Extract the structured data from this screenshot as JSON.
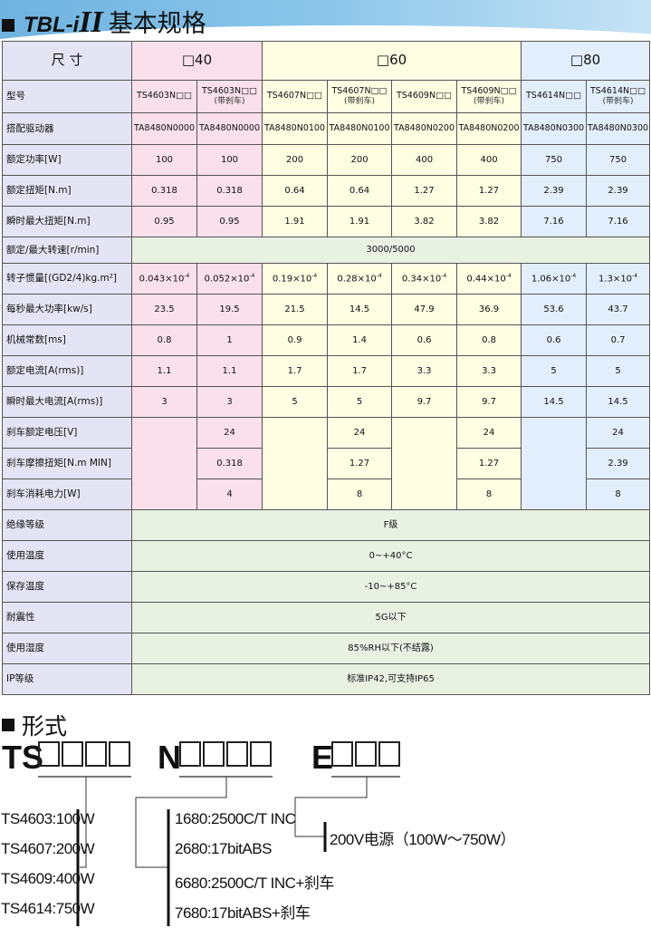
{
  "title": {
    "brand": "TBL-",
    "brand_i": "i",
    "brand_roman": "II",
    "text": "基本规格"
  },
  "table": {
    "size_label": "尺 寸",
    "groups": [
      {
        "label": "□40",
        "cls": "p",
        "span": 2
      },
      {
        "label": "□60",
        "cls": "y",
        "span": 4
      },
      {
        "label": "□80",
        "cls": "b",
        "span": 2
      }
    ],
    "col_classes": [
      "p",
      "p",
      "y",
      "y",
      "y",
      "y",
      "b",
      "b"
    ],
    "model_row": {
      "label": "型号",
      "values": [
        [
          "TS4603N□□",
          ""
        ],
        [
          "TS4603N□□",
          "(带刹车)"
        ],
        [
          "TS4607N□□",
          ""
        ],
        [
          "TS4607N□□",
          "(带刹车)"
        ],
        [
          "TS4609N□□",
          ""
        ],
        [
          "TS4609N□□",
          "(带刹车)"
        ],
        [
          "TS4614N□□",
          ""
        ],
        [
          "TS4614N□□",
          "(带刹车)"
        ]
      ]
    },
    "rows": [
      {
        "label": "搭配驱动器",
        "values": [
          "TA8480N0000",
          "TA8480N0000",
          "TA8480N0100",
          "TA8480N0100",
          "TA8480N0200",
          "TA8480N0200",
          "TA8480N0300",
          "TA8480N0300"
        ]
      },
      {
        "label": "额定功率[W]",
        "values": [
          "100",
          "100",
          "200",
          "200",
          "400",
          "400",
          "750",
          "750"
        ]
      },
      {
        "label": "额定扭矩[N.m]",
        "values": [
          "0.318",
          "0.318",
          "0.64",
          "0.64",
          "1.27",
          "1.27",
          "2.39",
          "2.39"
        ]
      },
      {
        "label": "瞬时最大扭矩[N.m]",
        "values": [
          "0.95",
          "0.95",
          "1.91",
          "1.91",
          "3.82",
          "3.82",
          "7.16",
          "7.16"
        ]
      },
      {
        "label": "额定/最大转速[r/min]",
        "merged": "3000/5000"
      },
      {
        "label": "转子惯量[(GD2/4)kg.m²]",
        "values": [
          "0.043×10",
          "0.052×10",
          "0.19×10",
          "0.28×10",
          "0.34×10",
          "0.44×10",
          "1.06×10",
          "1.3×10"
        ],
        "exponent": "-4"
      },
      {
        "label": "每秒最大功率[kw/s]",
        "values": [
          "23.5",
          "19.5",
          "21.5",
          "14.5",
          "47.9",
          "36.9",
          "53.6",
          "43.7"
        ]
      },
      {
        "label": "机械常数[ms]",
        "values": [
          "0.8",
          "1",
          "0.9",
          "1.4",
          "0.6",
          "0.8",
          "0.6",
          "0.7"
        ]
      },
      {
        "label": "额定电流[A(rms)]",
        "values": [
          "1.1",
          "1.1",
          "1.7",
          "1.7",
          "3.3",
          "3.3",
          "5",
          "5"
        ]
      },
      {
        "label": "瞬时最大电流[A(rms)]",
        "values": [
          "3",
          "3",
          "5",
          "5",
          "9.7",
          "9.7",
          "14.5",
          "14.5"
        ]
      }
    ],
    "brake_rows": [
      {
        "label": "刹车额定电压[V]",
        "values": [
          "24",
          "24",
          "24",
          "24"
        ]
      },
      {
        "label": "刹车摩擦扭矩[N.m MIN]",
        "values": [
          "0.318",
          "1.27",
          "1.27",
          "2.39"
        ]
      },
      {
        "label": "刹车消耗电力[W]",
        "values": [
          "4",
          "8",
          "8",
          "8"
        ]
      }
    ],
    "common_rows": [
      {
        "label": "绝缘等级",
        "value": "F级"
      },
      {
        "label": "使用温度",
        "value": "0~+40°C"
      },
      {
        "label": "保存温度",
        "value": "-10~+85°C"
      },
      {
        "label": "耐震性",
        "value": "5G以下"
      },
      {
        "label": "使用湿度",
        "value": "85%RH以下(不结露)"
      },
      {
        "label": "IP等级",
        "value": "标准IP42,可支持IP65"
      }
    ]
  },
  "form": {
    "heading": "形式",
    "prefix_ts": "TS",
    "prefix_n": "N",
    "prefix_e": "E",
    "ts_options": [
      "TS4603:100W",
      "TS4607:200W",
      "TS4609:400W",
      "TS4614:750W"
    ],
    "n_options": [
      "1680:2500C/T INC",
      "2680:17bitABS",
      "6680:2500C/T INC+刹车",
      "7680:17bitABS+刹车"
    ],
    "e_option": "200V电源（100W～750W）"
  }
}
